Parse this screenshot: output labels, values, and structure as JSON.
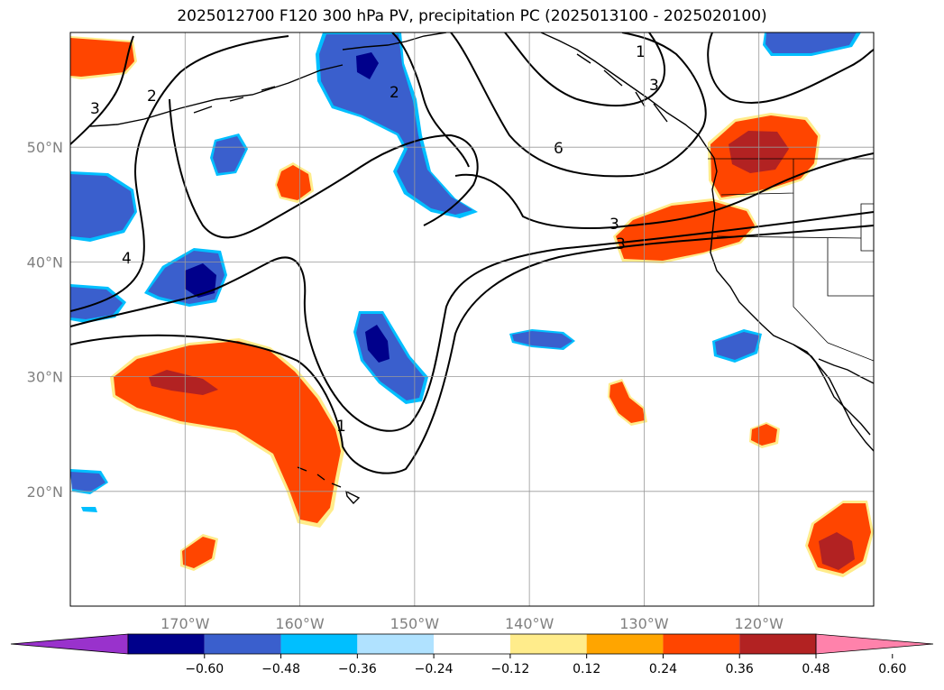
{
  "title": "2025012700 F120 300 hPa PV, precipitation PC (2025013100 - 2025020100)",
  "map": {
    "lon_range": [
      -180,
      -110
    ],
    "lat_range": [
      10,
      60
    ],
    "gridlines": true,
    "lat_ticks": [
      {
        "value": 20,
        "label": "20°N"
      },
      {
        "value": 30,
        "label": "30°N"
      },
      {
        "value": 40,
        "label": "40°N"
      },
      {
        "value": 50,
        "label": "50°N"
      }
    ],
    "lon_ticks": [
      {
        "value": -170,
        "label": "170°W"
      },
      {
        "value": -160,
        "label": "160°W"
      },
      {
        "value": -150,
        "label": "150°W"
      },
      {
        "value": -140,
        "label": "140°W"
      },
      {
        "value": -130,
        "label": "130°W"
      },
      {
        "value": -120,
        "label": "120°W"
      }
    ],
    "contour_labels": [
      "1",
      "2",
      "3",
      "4",
      "6",
      "1",
      "2",
      "3"
    ]
  },
  "colorbar": {
    "ticks": [
      "−0.60",
      "−0.48",
      "−0.36",
      "−0.24",
      "−0.12",
      "0.12",
      "0.24",
      "0.36",
      "0.48",
      "0.60"
    ],
    "colors": [
      "#9932cc",
      "#00008b",
      "#3a5fcd",
      "#00bfff",
      "#b0e2ff",
      "#ffffff",
      "#ffec8b",
      "#ffa500",
      "#ff4500",
      "#b22222",
      "#ff82ab"
    ]
  }
}
